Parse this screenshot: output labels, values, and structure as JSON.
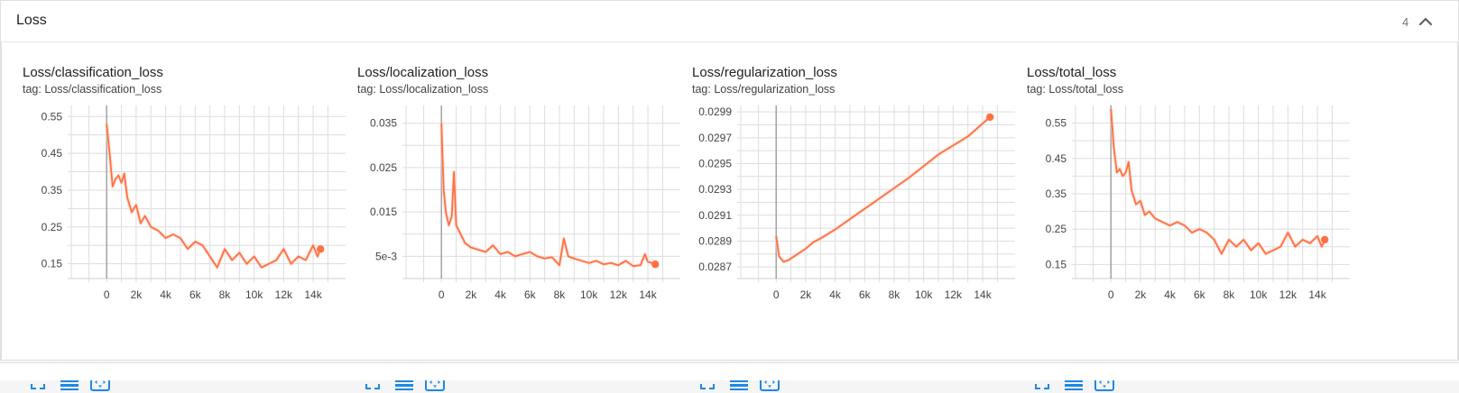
{
  "panel": {
    "title": "Loss",
    "count": "4"
  },
  "icons": {
    "collapse": "chevron-up-icon",
    "fullscreen": "fullscreen-icon",
    "data": "data-table-icon",
    "fit": "fit-domain-icon"
  },
  "colors": {
    "series": "#ff7043",
    "series_light": "#ffccbc",
    "grid": "#dddddd",
    "axis": "#9e9e9e",
    "tool": "#1e88e5"
  },
  "cards": [
    {
      "title": "Loss/classification_loss",
      "tag": "tag: Loss/classification_loss"
    },
    {
      "title": "Loss/localization_loss",
      "tag": "tag: Loss/localization_loss"
    },
    {
      "title": "Loss/regularization_loss",
      "tag": "tag: Loss/regularization_loss"
    },
    {
      "title": "Loss/total_loss",
      "tag": "tag: Loss/total_loss"
    }
  ],
  "chart_data": [
    {
      "type": "line",
      "title": "Loss/classification_loss",
      "xlim": [
        -2400,
        16200
      ],
      "ylim": [
        0.11,
        0.58
      ],
      "x_ticks": [
        0,
        2000,
        4000,
        6000,
        8000,
        10000,
        12000,
        14000
      ],
      "x_tick_labels": [
        "0",
        "2k",
        "4k",
        "6k",
        "8k",
        "10k",
        "12k",
        "14k"
      ],
      "y_ticks": [
        0.15,
        0.25,
        0.35,
        0.45,
        0.55
      ],
      "y_tick_labels": [
        "0.15",
        "0.25",
        "0.35",
        "0.45",
        "0.55"
      ],
      "y_grid": [
        0.15,
        0.2,
        0.25,
        0.3,
        0.35,
        0.4,
        0.45,
        0.5,
        0.55
      ],
      "series": [
        {
          "x": [
            0,
            200,
            400,
            600,
            800,
            1000,
            1200,
            1400,
            1700,
            2000,
            2300,
            2600,
            3000,
            3500,
            4000,
            4500,
            5000,
            5500,
            6000,
            6500,
            7000,
            7500,
            8000,
            8500,
            9000,
            9500,
            10000,
            10500,
            11000,
            11500,
            12000,
            12500,
            13000,
            13500,
            14000,
            14300,
            14500
          ],
          "y": [
            0.53,
            0.45,
            0.36,
            0.38,
            0.39,
            0.37,
            0.395,
            0.33,
            0.29,
            0.31,
            0.26,
            0.28,
            0.25,
            0.24,
            0.22,
            0.23,
            0.22,
            0.19,
            0.21,
            0.2,
            0.17,
            0.14,
            0.19,
            0.16,
            0.18,
            0.15,
            0.17,
            0.14,
            0.15,
            0.16,
            0.19,
            0.15,
            0.17,
            0.16,
            0.2,
            0.17,
            0.19
          ]
        }
      ]
    },
    {
      "type": "line",
      "title": "Loss/localization_loss",
      "xlim": [
        -2400,
        16200
      ],
      "ylim": [
        0.0,
        0.039
      ],
      "x_ticks": [
        0,
        2000,
        4000,
        6000,
        8000,
        10000,
        12000,
        14000
      ],
      "x_tick_labels": [
        "0",
        "2k",
        "4k",
        "6k",
        "8k",
        "10k",
        "12k",
        "14k"
      ],
      "y_ticks": [
        0.005,
        0.015,
        0.025,
        0.035
      ],
      "y_tick_labels": [
        "5e-3",
        "0.015",
        "0.025",
        "0.035"
      ],
      "y_grid": [
        0.005,
        0.01,
        0.015,
        0.02,
        0.025,
        0.03,
        0.035
      ],
      "series": [
        {
          "x": [
            0,
            150,
            300,
            500,
            700,
            850,
            1000,
            1300,
            1600,
            2000,
            2500,
            3000,
            3500,
            4000,
            4500,
            5000,
            5500,
            6000,
            6500,
            7000,
            7500,
            8000,
            8300,
            8600,
            9000,
            9500,
            10000,
            10500,
            11000,
            11500,
            12000,
            12500,
            13000,
            13500,
            13800,
            14000,
            14500
          ],
          "y": [
            0.035,
            0.02,
            0.015,
            0.012,
            0.014,
            0.024,
            0.012,
            0.01,
            0.008,
            0.007,
            0.0065,
            0.006,
            0.0075,
            0.0055,
            0.006,
            0.005,
            0.0055,
            0.006,
            0.005,
            0.0045,
            0.0048,
            0.003,
            0.009,
            0.005,
            0.0045,
            0.004,
            0.0035,
            0.004,
            0.0032,
            0.0035,
            0.003,
            0.004,
            0.0028,
            0.003,
            0.0055,
            0.0038,
            0.0032
          ]
        }
      ]
    },
    {
      "type": "line",
      "title": "Loss/regularization_loss",
      "xlim": [
        -2400,
        16200
      ],
      "ylim": [
        0.02861,
        0.02995
      ],
      "x_ticks": [
        0,
        2000,
        4000,
        6000,
        8000,
        10000,
        12000,
        14000
      ],
      "x_tick_labels": [
        "0",
        "2k",
        "4k",
        "6k",
        "8k",
        "10k",
        "12k",
        "14k"
      ],
      "y_ticks": [
        0.0287,
        0.0289,
        0.0291,
        0.0293,
        0.0295,
        0.0297,
        0.0299
      ],
      "y_tick_labels": [
        "0.0287",
        "0.0289",
        "0.0291",
        "0.0293",
        "0.0295",
        "0.0297",
        "0.0299"
      ],
      "y_grid": [
        0.0287,
        0.0288,
        0.0289,
        0.029,
        0.0291,
        0.0292,
        0.0293,
        0.0294,
        0.0295,
        0.0296,
        0.0297,
        0.0298,
        0.0299
      ],
      "series": [
        {
          "x": [
            0,
            200,
            500,
            800,
            1200,
            1600,
            2000,
            2500,
            3000,
            4000,
            5000,
            6000,
            7000,
            8000,
            9000,
            10000,
            11000,
            12000,
            13000,
            14000,
            14500
          ],
          "y": [
            0.02894,
            0.02878,
            0.02874,
            0.02875,
            0.02878,
            0.02881,
            0.02884,
            0.02889,
            0.02892,
            0.02899,
            0.02907,
            0.02915,
            0.02923,
            0.02931,
            0.02939,
            0.02948,
            0.02957,
            0.02964,
            0.02971,
            0.02981,
            0.02986
          ]
        }
      ]
    },
    {
      "type": "line",
      "title": "Loss/total_loss",
      "xlim": [
        -2400,
        16200
      ],
      "ylim": [
        0.11,
        0.6
      ],
      "x_ticks": [
        0,
        2000,
        4000,
        6000,
        8000,
        10000,
        12000,
        14000
      ],
      "x_tick_labels": [
        "0",
        "2k",
        "4k",
        "6k",
        "8k",
        "10k",
        "12k",
        "14k"
      ],
      "y_ticks": [
        0.15,
        0.25,
        0.35,
        0.45,
        0.55
      ],
      "y_tick_labels": [
        "0.15",
        "0.25",
        "0.35",
        "0.45",
        "0.55"
      ],
      "y_grid": [
        0.15,
        0.2,
        0.25,
        0.3,
        0.35,
        0.4,
        0.45,
        0.5,
        0.55
      ],
      "series": [
        {
          "x": [
            0,
            200,
            400,
            600,
            800,
            1000,
            1200,
            1400,
            1700,
            2000,
            2300,
            2600,
            3000,
            3500,
            4000,
            4500,
            5000,
            5500,
            6000,
            6500,
            7000,
            7500,
            8000,
            8500,
            9000,
            9500,
            10000,
            10500,
            11000,
            11500,
            12000,
            12500,
            13000,
            13500,
            14000,
            14300,
            14500
          ],
          "y": [
            0.59,
            0.48,
            0.41,
            0.42,
            0.4,
            0.41,
            0.44,
            0.36,
            0.32,
            0.33,
            0.29,
            0.3,
            0.28,
            0.27,
            0.26,
            0.27,
            0.26,
            0.24,
            0.25,
            0.24,
            0.22,
            0.18,
            0.22,
            0.2,
            0.22,
            0.19,
            0.21,
            0.18,
            0.19,
            0.2,
            0.24,
            0.2,
            0.22,
            0.21,
            0.23,
            0.2,
            0.22
          ]
        }
      ]
    }
  ]
}
